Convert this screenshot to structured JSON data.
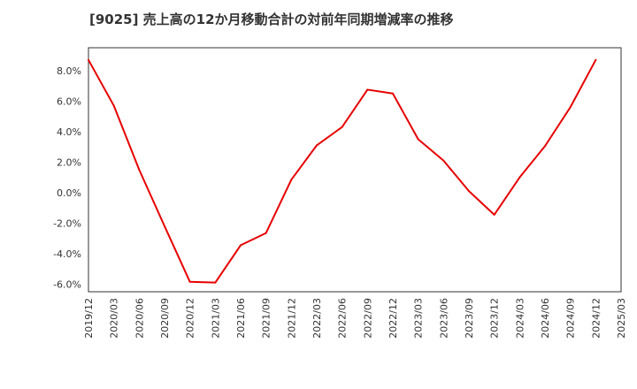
{
  "chart_data": {
    "type": "line",
    "title": "[9025]  売上高の12か月移動合計の対前年同期増減率の推移",
    "xlabel": "",
    "ylabel": "",
    "x": [
      "2019/12",
      "2020/03",
      "2020/06",
      "2020/09",
      "2020/12",
      "2021/03",
      "2021/06",
      "2021/09",
      "2021/12",
      "2022/03",
      "2022/06",
      "2022/09",
      "2022/12",
      "2023/03",
      "2023/06",
      "2023/09",
      "2023/12",
      "2024/03",
      "2024/06",
      "2024/09",
      "2024/12",
      "2025/03"
    ],
    "series": [
      {
        "name": "対前年同期増減率",
        "color": "#e60000",
        "values": [
          8.7,
          5.7,
          1.5,
          -2.2,
          -5.85,
          -5.9,
          -3.45,
          -2.65,
          0.85,
          3.1,
          4.3,
          6.75,
          6.5,
          3.5,
          2.1,
          0.1,
          -1.45,
          1.0,
          3.05,
          5.6,
          8.7,
          null
        ]
      }
    ],
    "yticks": [
      -6,
      -4,
      -2,
      0,
      2,
      4,
      6,
      8
    ],
    "ytick_labels": [
      "-6.0%",
      "-4.0%",
      "-2.0%",
      "0.0%",
      "2.0%",
      "4.0%",
      "6.0%",
      "8.0%"
    ],
    "ylim": [
      -6.5,
      9.5
    ],
    "grid": true,
    "zero_line": true
  }
}
